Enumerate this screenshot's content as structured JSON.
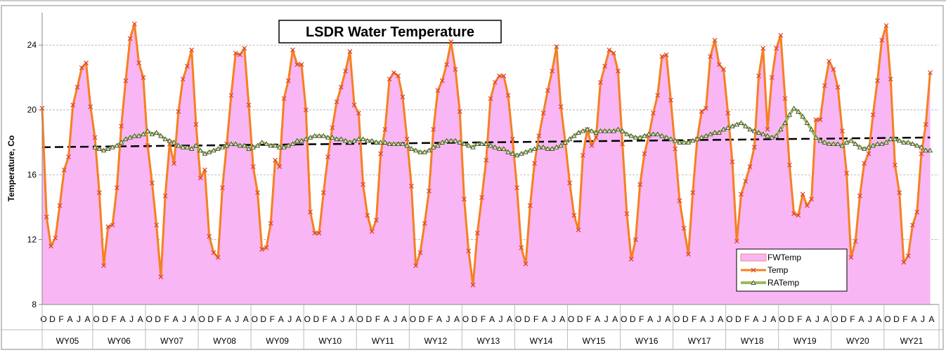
{
  "chart_data": {
    "type": "line",
    "title": "LSDR Water Temperature",
    "y_label": "Temperature, Co",
    "ylim": [
      8,
      26
    ],
    "yticks": [
      8,
      12,
      16,
      20,
      24
    ],
    "grid": true,
    "legend": "lower right",
    "categories": [
      "O",
      null,
      "D",
      null,
      "F",
      null,
      "A",
      null,
      "J",
      null,
      "A",
      null,
      "O",
      null,
      "D",
      null,
      "F",
      null,
      "A",
      null,
      "J",
      null,
      "A",
      null,
      "O",
      null,
      "D",
      null,
      "F",
      null,
      "A",
      null,
      "J",
      null,
      "A",
      null,
      "O",
      null,
      "D",
      null,
      "F",
      null,
      "A",
      null,
      "J",
      null,
      "A",
      null,
      "O",
      null,
      "D",
      null,
      "F",
      null,
      "A",
      null,
      "J",
      null,
      "A",
      null,
      "O",
      null,
      "D",
      null,
      "F",
      null,
      "A",
      null,
      "J",
      null,
      "A",
      null,
      "O",
      null,
      "D",
      null,
      "F",
      null,
      "A",
      null,
      "J",
      null,
      "A",
      null,
      "O",
      null,
      "D",
      null,
      "F",
      null,
      "A",
      null,
      "J",
      null,
      "A",
      null,
      "O",
      null,
      "D",
      null,
      "F",
      null,
      "A",
      null,
      "J",
      null,
      "A",
      null,
      "O",
      null,
      "D",
      null,
      "F",
      null,
      "A",
      null,
      "J",
      null,
      "A",
      null,
      "O",
      null,
      "D",
      null,
      "F",
      null,
      "A",
      null,
      "J",
      null,
      "A",
      null,
      "O",
      null,
      "D",
      null,
      "F",
      null,
      "A",
      null,
      "J",
      null,
      "A",
      null,
      "O",
      null,
      "D",
      null,
      "F",
      null,
      "A",
      null,
      "J",
      null,
      "A",
      null,
      "O",
      null,
      "D",
      null,
      "F",
      null,
      "A",
      null,
      "J",
      null,
      "A",
      null,
      "O",
      null,
      "D",
      null,
      "F",
      null,
      "A",
      null,
      "J",
      null,
      "A",
      null,
      "O",
      null,
      "D",
      null,
      "F",
      null,
      "A",
      null,
      "J",
      null,
      "A",
      null,
      "O",
      null,
      "D",
      null,
      "F",
      null,
      "A",
      null,
      "J",
      null,
      "A"
    ],
    "water_years": [
      "WY05",
      "WY06",
      "WY07",
      "WY08",
      "WY09",
      "WY10",
      "WY11",
      "WY12",
      "WY13",
      "WY14",
      "WY15",
      "WY16",
      "WY17",
      "WY18",
      "WY19",
      "WY20",
      "WY21"
    ],
    "series": [
      {
        "name": "FWTemp",
        "kind": "area",
        "color": "#f9b6f4",
        "values": [
          20.1,
          13.4,
          11.6,
          12.1,
          14.1,
          16.3,
          17.1,
          20.3,
          21.4,
          22.6,
          22.9,
          20.2,
          18.3,
          14.9,
          10.4,
          12.8,
          12.9,
          15.2,
          19.0,
          21.8,
          24.4,
          25.3,
          22.9,
          22.0,
          17.8,
          15.5,
          12.9,
          9.7,
          14.7,
          17.9,
          16.7,
          19.9,
          21.9,
          22.7,
          23.7,
          19.1,
          15.8,
          16.3,
          12.2,
          11.2,
          10.9,
          15.2,
          17.9,
          20.9,
          23.5,
          23.4,
          23.8,
          20.3,
          16.5,
          14.9,
          11.4,
          11.5,
          13.0,
          16.9,
          16.5,
          20.7,
          21.8,
          23.7,
          22.8,
          22.8,
          20.0,
          13.7,
          12.4,
          12.4,
          14.9,
          17.1,
          18.9,
          20.5,
          21.4,
          22.4,
          23.6,
          20.3,
          19.8,
          15.4,
          13.5,
          12.5,
          13.2,
          17.3,
          18.8,
          21.9,
          22.3,
          22.1,
          20.8,
          18.2,
          15.3,
          10.4,
          11.2,
          13.0,
          15.0,
          18.8,
          21.2,
          21.8,
          22.8,
          24.2,
          22.5,
          19.9,
          14.5,
          11.3,
          9.2,
          12.4,
          14.6,
          16.9,
          20.7,
          21.7,
          22.1,
          22.1,
          20.9,
          18.2,
          15.2,
          11.5,
          10.5,
          14.1,
          16.7,
          18.4,
          19.8,
          21.2,
          22.4,
          23.9,
          20.2,
          18.0,
          15.5,
          13.5,
          12.6,
          17.2,
          18.8,
          17.8,
          18.3,
          21.7,
          22.7,
          23.7,
          23.5,
          22.4,
          17.9,
          13.6,
          10.8,
          12.0,
          15.4,
          17.3,
          18.4,
          19.8,
          20.9,
          23.3,
          23.4,
          20.6,
          17.6,
          14.4,
          12.7,
          11.1,
          14.9,
          18.2,
          19.9,
          20.1,
          23.3,
          24.3,
          22.8,
          22.5,
          19.8,
          16.8,
          11.9,
          14.8,
          15.6,
          16.5,
          17.7,
          22.1,
          23.8,
          18.8,
          22.0,
          23.8,
          24.6,
          20.7,
          16.6,
          13.6,
          13.5,
          14.8,
          14.1,
          14.5,
          19.4,
          19.4,
          21.5,
          23.0,
          22.5,
          21.4,
          18.7,
          16.1,
          10.9,
          11.9,
          14.7,
          16.7,
          17.3,
          19.7,
          21.8,
          24.3,
          25.2,
          21.9,
          16.6,
          14.9,
          10.6,
          11.0,
          12.9,
          13.7,
          17.3,
          19.1,
          22.3
        ]
      },
      {
        "name": "Temp",
        "kind": "line",
        "color": "#f5801f",
        "marker_color": "#d9432c",
        "values": [
          20.1,
          13.4,
          11.6,
          12.1,
          14.1,
          16.3,
          17.1,
          20.3,
          21.4,
          22.6,
          22.9,
          20.2,
          18.3,
          14.9,
          10.4,
          12.8,
          12.9,
          15.2,
          19.0,
          21.8,
          24.4,
          25.3,
          22.9,
          22.0,
          17.8,
          15.5,
          12.9,
          9.7,
          14.7,
          17.9,
          16.7,
          19.9,
          21.9,
          22.7,
          23.7,
          19.1,
          15.8,
          16.3,
          12.2,
          11.2,
          10.9,
          15.2,
          17.9,
          20.9,
          23.5,
          23.4,
          23.8,
          20.3,
          16.5,
          14.9,
          11.4,
          11.5,
          13.0,
          16.9,
          16.5,
          20.7,
          21.8,
          23.7,
          22.8,
          22.8,
          20.0,
          13.7,
          12.4,
          12.4,
          14.9,
          17.1,
          18.9,
          20.5,
          21.4,
          22.4,
          23.6,
          20.3,
          19.8,
          15.4,
          13.5,
          12.5,
          13.2,
          17.3,
          18.8,
          21.9,
          22.3,
          22.1,
          20.8,
          18.2,
          15.3,
          10.4,
          11.2,
          13.0,
          15.0,
          18.8,
          21.2,
          21.8,
          22.8,
          24.2,
          22.5,
          19.9,
          14.5,
          11.3,
          9.2,
          12.4,
          14.6,
          16.9,
          20.7,
          21.7,
          22.1,
          22.1,
          20.9,
          18.2,
          15.2,
          11.5,
          10.5,
          14.1,
          16.7,
          18.4,
          19.8,
          21.2,
          22.4,
          23.9,
          20.2,
          18.0,
          15.5,
          13.5,
          12.6,
          17.2,
          18.8,
          17.8,
          18.3,
          21.7,
          22.7,
          23.7,
          23.5,
          22.4,
          17.9,
          13.6,
          10.8,
          12.0,
          15.4,
          17.3,
          18.4,
          19.8,
          20.9,
          23.3,
          23.4,
          20.6,
          17.6,
          14.4,
          12.7,
          11.1,
          14.9,
          18.2,
          19.9,
          20.1,
          23.3,
          24.3,
          22.8,
          22.5,
          19.8,
          16.8,
          11.9,
          14.8,
          15.6,
          16.5,
          17.7,
          22.1,
          23.8,
          18.8,
          22.0,
          23.8,
          24.6,
          20.7,
          16.6,
          13.6,
          13.5,
          14.8,
          14.1,
          14.5,
          19.4,
          19.4,
          21.5,
          23.0,
          22.5,
          21.4,
          18.7,
          16.1,
          10.9,
          11.9,
          14.7,
          16.7,
          17.3,
          19.7,
          21.8,
          24.3,
          25.2,
          21.9,
          16.6,
          14.9,
          10.6,
          11.0,
          12.9,
          13.7,
          17.3,
          19.1,
          22.3
        ]
      },
      {
        "name": "RATemp",
        "kind": "line",
        "color": "#9bbb59",
        "marker_color": "#d8ebb0",
        "values": [
          null,
          null,
          null,
          null,
          null,
          null,
          null,
          null,
          null,
          null,
          null,
          null,
          17.7,
          17.6,
          17.5,
          17.6,
          17.7,
          17.8,
          18.0,
          18.2,
          18.3,
          18.4,
          18.4,
          18.5,
          18.7,
          18.5,
          18.6,
          18.4,
          18.2,
          18.1,
          18.0,
          17.8,
          17.7,
          17.7,
          17.6,
          17.8,
          17.5,
          17.3,
          17.4,
          17.5,
          17.6,
          17.7,
          17.8,
          17.9,
          17.9,
          17.8,
          17.8,
          17.6,
          17.7,
          17.8,
          18.0,
          17.9,
          17.8,
          17.8,
          17.7,
          17.7,
          17.8,
          17.9,
          18.1,
          18.1,
          18.2,
          18.3,
          18.4,
          18.4,
          18.4,
          18.3,
          18.3,
          18.2,
          18.2,
          18.1,
          18.0,
          18.1,
          18.2,
          18.2,
          18.1,
          18.1,
          18.0,
          18.0,
          18.0,
          17.9,
          17.9,
          17.9,
          17.9,
          17.8,
          17.6,
          17.5,
          17.4,
          17.4,
          17.5,
          17.7,
          17.8,
          18.0,
          18.1,
          18.1,
          18.1,
          18.0,
          17.9,
          17.8,
          17.7,
          17.9,
          17.9,
          17.9,
          17.8,
          17.7,
          17.6,
          17.6,
          17.4,
          17.3,
          17.2,
          17.3,
          17.4,
          17.5,
          17.6,
          17.7,
          17.7,
          17.6,
          17.6,
          17.7,
          17.8,
          18.0,
          18.2,
          18.4,
          18.6,
          18.7,
          18.8,
          18.7,
          18.6,
          18.7,
          18.7,
          18.7,
          18.7,
          18.8,
          18.7,
          18.5,
          18.4,
          18.3,
          18.3,
          18.4,
          18.5,
          18.5,
          18.5,
          18.4,
          18.3,
          18.2,
          18.1,
          18.0,
          18.0,
          18.0,
          18.1,
          18.2,
          18.3,
          18.4,
          18.5,
          18.6,
          18.6,
          18.8,
          18.9,
          19.0,
          19.1,
          19.2,
          19.0,
          18.8,
          18.7,
          18.6,
          18.5,
          18.4,
          18.3,
          18.4,
          18.8,
          19.2,
          19.7,
          20.1,
          19.9,
          19.6,
          19.2,
          18.8,
          18.3,
          18.1,
          18.0,
          17.9,
          17.9,
          17.9,
          17.8,
          18.0,
          18.1,
          17.9,
          17.7,
          17.6,
          17.7,
          17.8,
          17.9,
          17.9,
          18.0,
          18.2,
          18.2,
          18.1,
          18.0,
          18.0,
          17.9,
          17.8,
          17.7,
          17.5,
          17.5
        ]
      }
    ],
    "trend_line": [
      17.7,
      18.3
    ]
  }
}
